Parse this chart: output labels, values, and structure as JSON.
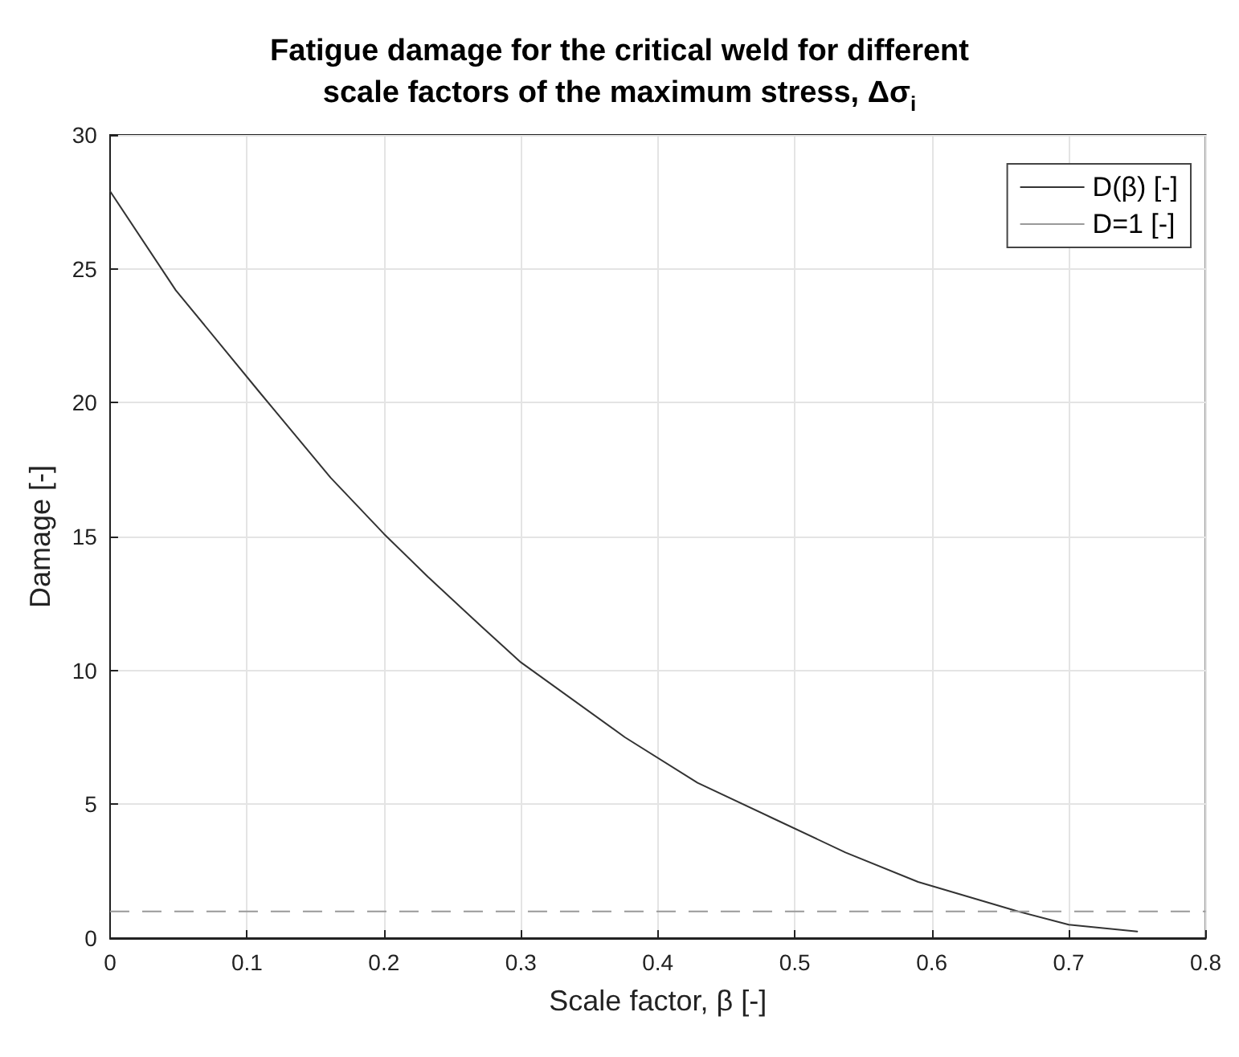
{
  "chart_data": {
    "type": "line",
    "title": "Fatigue damage for the critical weld for different\nscale factors of the maximum stress, Δσ$_{i}$",
    "xlabel": "Scale factor, β [-]",
    "ylabel": "Damage [-]",
    "series": [
      {
        "name": "D(β) [-]",
        "color": "#333333",
        "line_style": "solid",
        "x": [
          0,
          0.048,
          0.109,
          0.161,
          0.2,
          0.232,
          0.272,
          0.3,
          0.376,
          0.429,
          0.483,
          0.537,
          0.59,
          0.663,
          0.7,
          0.75
        ],
        "values": [
          27.9,
          24.2,
          20.4,
          17.2,
          15.1,
          13.5,
          11.6,
          10.3,
          7.5,
          5.8,
          4.5,
          3.2,
          2.1,
          1.0,
          0.5,
          0.25
        ]
      },
      {
        "name": "D=1 [-]",
        "color": "#999999",
        "line_style": "dashed",
        "x": [
          0,
          0.8
        ],
        "values": [
          1,
          1
        ]
      }
    ],
    "xlim": [
      0,
      0.8
    ],
    "xticks": [
      0,
      0.1,
      0.2,
      0.3,
      0.4,
      0.5,
      0.6,
      0.7,
      0.8
    ],
    "ylim": [
      0,
      30
    ],
    "yticks": [
      0,
      5,
      10,
      15,
      20,
      25,
      30
    ],
    "grid": true,
    "legend": "top right",
    "marker": "none"
  }
}
